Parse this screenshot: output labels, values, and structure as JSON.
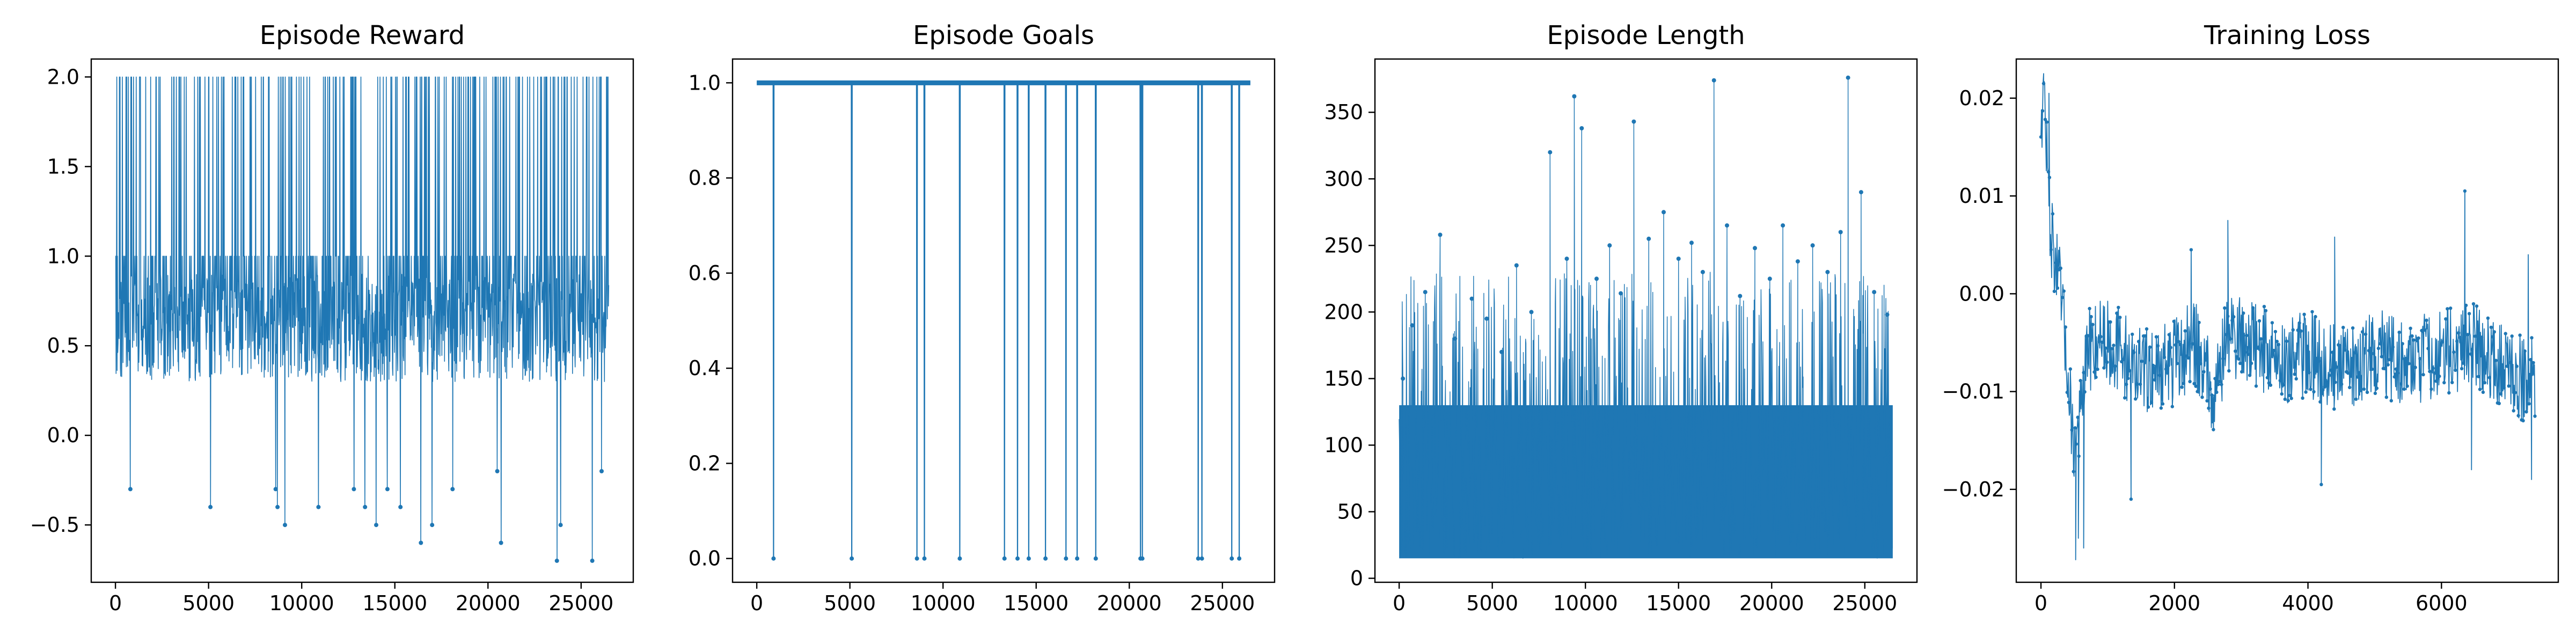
{
  "chart_data": [
    {
      "type": "line",
      "title": "Episode Reward",
      "xlabel": "",
      "ylabel": "",
      "xlim": [
        -1300,
        27800
      ],
      "ylim": [
        -0.82,
        2.1
      ],
      "xticks": [
        0,
        5000,
        10000,
        15000,
        20000,
        25000
      ],
      "xtick_labels": [
        "0",
        "5000",
        "10000",
        "15000",
        "20000",
        "25000"
      ],
      "yticks": [
        -0.5,
        0.0,
        0.5,
        1.0,
        1.5,
        2.0
      ],
      "ytick_labels": [
        "−0.5",
        "0.0",
        "0.5",
        "1.0",
        "1.5",
        "2.0"
      ],
      "grid": false,
      "legend": "none",
      "color": "#1f77b4",
      "summary": {
        "n_points": 26500,
        "band_low": 0.3,
        "band_high": 0.9,
        "upper_levels": [
          1.0,
          2.0
        ],
        "outliers": [
          [
            800,
            -0.3
          ],
          [
            5100,
            -0.4
          ],
          [
            8600,
            -0.3
          ],
          [
            8700,
            -0.4
          ],
          [
            9100,
            -0.5
          ],
          [
            10900,
            -0.4
          ],
          [
            12800,
            -0.3
          ],
          [
            13400,
            -0.4
          ],
          [
            14000,
            -0.5
          ],
          [
            14600,
            -0.3
          ],
          [
            15300,
            -0.4
          ],
          [
            16400,
            -0.6
          ],
          [
            17000,
            -0.5
          ],
          [
            18100,
            -0.3
          ],
          [
            20500,
            -0.2
          ],
          [
            20700,
            -0.6
          ],
          [
            23700,
            -0.7
          ],
          [
            23900,
            -0.5
          ],
          [
            25600,
            -0.7
          ],
          [
            26100,
            -0.2
          ]
        ]
      }
    },
    {
      "type": "line",
      "title": "Episode Goals",
      "xlabel": "",
      "ylabel": "",
      "xlim": [
        -1300,
        27800
      ],
      "ylim": [
        -0.05,
        1.05
      ],
      "xticks": [
        0,
        5000,
        10000,
        15000,
        20000,
        25000
      ],
      "xtick_labels": [
        "0",
        "5000",
        "10000",
        "15000",
        "20000",
        "25000"
      ],
      "yticks": [
        0.0,
        0.2,
        0.4,
        0.6,
        0.8,
        1.0
      ],
      "ytick_labels": [
        "0.0",
        "0.2",
        "0.4",
        "0.6",
        "0.8",
        "1.0"
      ],
      "grid": false,
      "legend": "none",
      "color": "#1f77b4",
      "summary": {
        "n_points": 26500,
        "baseline": 1.0,
        "drops_to_zero_x": [
          900,
          5100,
          8600,
          9000,
          10900,
          13300,
          14000,
          14600,
          15500,
          16600,
          17200,
          18200,
          20600,
          20700,
          23700,
          23900,
          25500,
          25900
        ]
      }
    },
    {
      "type": "line",
      "title": "Episode Length",
      "xlabel": "",
      "ylabel": "",
      "xlim": [
        -1300,
        27800
      ],
      "ylim": [
        -3,
        390
      ],
      "xticks": [
        0,
        5000,
        10000,
        15000,
        20000,
        25000
      ],
      "xtick_labels": [
        "0",
        "5000",
        "10000",
        "15000",
        "20000",
        "25000"
      ],
      "yticks": [
        0,
        50,
        100,
        150,
        200,
        250,
        300,
        350
      ],
      "ytick_labels": [
        "0",
        "50",
        "100",
        "150",
        "200",
        "250",
        "300",
        "350"
      ],
      "grid": false,
      "legend": "none",
      "color": "#1f77b4",
      "summary": {
        "n_points": 26500,
        "band_low": 15,
        "band_high": 130,
        "spikes": [
          [
            200,
            150
          ],
          [
            700,
            190
          ],
          [
            1400,
            215
          ],
          [
            2200,
            258
          ],
          [
            3000,
            180
          ],
          [
            3900,
            210
          ],
          [
            4700,
            195
          ],
          [
            5500,
            170
          ],
          [
            6300,
            235
          ],
          [
            7100,
            200
          ],
          [
            8100,
            320
          ],
          [
            9000,
            240
          ],
          [
            9400,
            362
          ],
          [
            9800,
            338
          ],
          [
            10600,
            225
          ],
          [
            11300,
            250
          ],
          [
            11900,
            214
          ],
          [
            12600,
            343
          ],
          [
            13400,
            255
          ],
          [
            14200,
            275
          ],
          [
            15000,
            240
          ],
          [
            15700,
            252
          ],
          [
            16300,
            230
          ],
          [
            16900,
            374
          ],
          [
            17600,
            265
          ],
          [
            18300,
            212
          ],
          [
            19100,
            248
          ],
          [
            19900,
            225
          ],
          [
            20600,
            265
          ],
          [
            21400,
            238
          ],
          [
            22200,
            250
          ],
          [
            23000,
            230
          ],
          [
            23700,
            260
          ],
          [
            24100,
            376
          ],
          [
            24800,
            290
          ],
          [
            25500,
            215
          ],
          [
            26200,
            198
          ]
        ]
      }
    },
    {
      "type": "line",
      "title": "Training Loss",
      "xlabel": "",
      "ylabel": "",
      "xlim": [
        -370,
        7750
      ],
      "ylim": [
        -0.0295,
        0.024
      ],
      "xticks": [
        0,
        2000,
        4000,
        6000
      ],
      "xtick_labels": [
        "0",
        "2000",
        "4000",
        "6000"
      ],
      "yticks": [
        -0.02,
        -0.01,
        0.0,
        0.01,
        0.02
      ],
      "ytick_labels": [
        "−0.02",
        "−0.01",
        "0.00",
        "0.01",
        "0.02"
      ],
      "grid": false,
      "legend": "none",
      "color": "#1f77b4",
      "summary": {
        "n_points": 7400,
        "anchors": [
          [
            0,
            0.018
          ],
          [
            50,
            0.021
          ],
          [
            100,
            0.012
          ],
          [
            150,
            0.006
          ],
          [
            200,
            0.004
          ],
          [
            300,
            0.0
          ],
          [
            400,
            -0.008
          ],
          [
            500,
            -0.016
          ],
          [
            600,
            -0.012
          ],
          [
            700,
            -0.006
          ],
          [
            900,
            -0.004
          ],
          [
            1200,
            -0.006
          ],
          [
            1500,
            -0.008
          ],
          [
            2000,
            -0.007
          ],
          [
            2300,
            -0.005
          ],
          [
            2600,
            -0.01
          ],
          [
            2800,
            -0.004
          ],
          [
            3200,
            -0.005
          ],
          [
            3600,
            -0.007
          ],
          [
            4000,
            -0.006
          ],
          [
            4500,
            -0.008
          ],
          [
            5000,
            -0.006
          ],
          [
            5500,
            -0.007
          ],
          [
            6000,
            -0.006
          ],
          [
            6500,
            -0.005
          ],
          [
            7000,
            -0.008
          ],
          [
            7400,
            -0.009
          ]
        ],
        "extremes": [
          [
            40,
            0.0215
          ],
          [
            120,
            0.0205
          ],
          [
            520,
            -0.0272
          ],
          [
            560,
            -0.025
          ],
          [
            640,
            -0.026
          ],
          [
            1350,
            -0.021
          ],
          [
            2250,
            0.0045
          ],
          [
            2800,
            0.0075
          ],
          [
            4200,
            -0.0195
          ],
          [
            4400,
            0.0058
          ],
          [
            6350,
            0.0105
          ],
          [
            6450,
            -0.018
          ],
          [
            7300,
            0.004
          ],
          [
            7350,
            -0.019
          ]
        ]
      }
    }
  ]
}
